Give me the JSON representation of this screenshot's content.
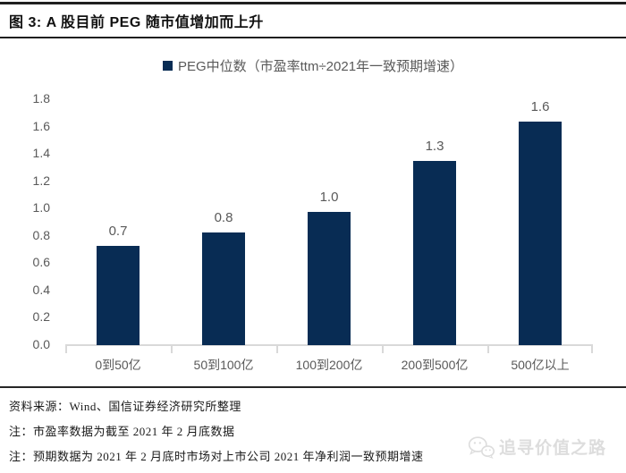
{
  "figure": {
    "title": "图 3: A 股目前 PEG 随市值增加而上升"
  },
  "chart_data": {
    "type": "bar",
    "legend_label": "PEG中位数（市盈率ttm÷2021年一致预期增速）",
    "categories": [
      "0到50亿",
      "50到100亿",
      "100到200亿",
      "200到500亿",
      "500亿以上"
    ],
    "values": [
      0.72,
      0.82,
      0.97,
      1.34,
      1.63
    ],
    "data_labels": [
      "0.7",
      "0.8",
      "1.0",
      "1.3",
      "1.6"
    ],
    "xlabel": "",
    "ylabel": "",
    "ylim": [
      0,
      1.8
    ],
    "ytick_step": 0.2,
    "ytick_labels": [
      "1.8",
      "1.6",
      "1.4",
      "1.2",
      "1.0",
      "0.8",
      "0.6",
      "0.4",
      "0.2",
      "0.0"
    ],
    "grid": "off",
    "legend_position": "top-center",
    "bar_color": "#082c54",
    "axis_color": "#d9d9d9",
    "label_color": "#595959"
  },
  "footer": {
    "source": "资料来源：Wind、国信证券经济研究所整理",
    "note1": "注：市盈率数据为截至 2021 年 2 月底数据",
    "note2": "注：预期数据为 2021 年 2 月底时市场对上市公司 2021 年净利润一致预期增速"
  },
  "watermark": {
    "label": "追寻价值之路",
    "icon": "wechat-icon"
  }
}
